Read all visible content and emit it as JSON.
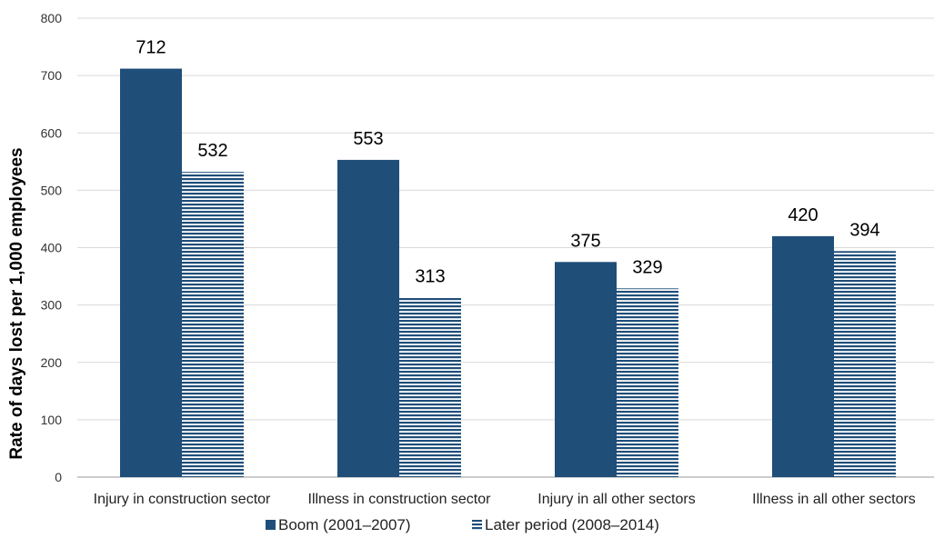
{
  "chart_data": {
    "type": "bar",
    "ylabel": "Rate of days lost per 1,000 employees",
    "xlabel": "",
    "ylim": [
      0,
      800
    ],
    "yticks": [
      0,
      100,
      200,
      300,
      400,
      500,
      600,
      700,
      800
    ],
    "grid": true,
    "legend_position": "bottom",
    "categories": [
      "Injury in construction sector",
      "Illness in construction sector",
      "Injury in all other sectors",
      "Illness in all other sectors"
    ],
    "series": [
      {
        "name": "Boom (2001–2007)",
        "values": [
          712,
          553,
          375,
          420
        ],
        "color": "#1f4e79",
        "pattern": "solid"
      },
      {
        "name": "Later period (2008–2014)",
        "values": [
          532,
          313,
          329,
          394
        ],
        "color": "#1f4e79",
        "pattern": "horizontal-stripes"
      }
    ],
    "data_labels": true
  }
}
